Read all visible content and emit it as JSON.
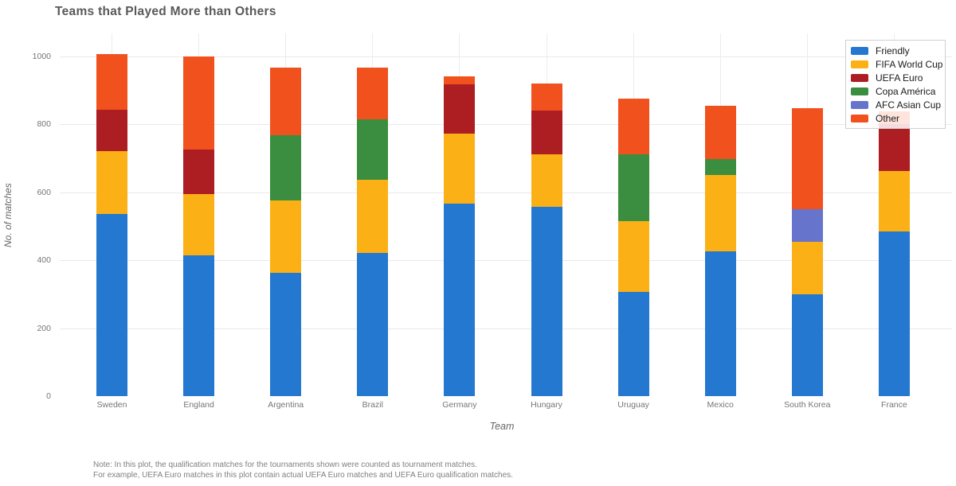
{
  "title": "Teams that Played More than Others",
  "chart_data": {
    "type": "bar",
    "stacked": true,
    "title": "Teams that Played More than Others",
    "xlabel": "Team",
    "ylabel": "No. of matches",
    "categories": [
      "Sweden",
      "England",
      "Argentina",
      "Brazil",
      "Germany",
      "Hungary",
      "Uruguay",
      "Mexico",
      "South Korea",
      "France"
    ],
    "series": [
      {
        "name": "Friendly",
        "color": "#2478cf",
        "values": [
          535,
          413,
          363,
          421,
          567,
          556,
          306,
          425,
          300,
          484
        ]
      },
      {
        "name": "FIFA World Cup",
        "color": "#fbb116",
        "values": [
          185,
          180,
          213,
          215,
          205,
          154,
          208,
          226,
          153,
          179
        ]
      },
      {
        "name": "UEFA Euro",
        "color": "#ad1e23",
        "values": [
          121,
          132,
          0,
          0,
          146,
          129,
          0,
          0,
          0,
          137
        ]
      },
      {
        "name": "Copa América",
        "color": "#3b8e3f",
        "values": [
          0,
          0,
          191,
          177,
          0,
          0,
          198,
          47,
          0,
          0
        ]
      },
      {
        "name": "AFC Asian Cup",
        "color": "#6674cb",
        "values": [
          0,
          0,
          0,
          0,
          0,
          0,
          0,
          0,
          97,
          0
        ]
      },
      {
        "name": "Other",
        "color": "#f1511d",
        "values": [
          164,
          275,
          200,
          154,
          22,
          80,
          163,
          155,
          296,
          37
        ]
      }
    ],
    "totals": [
      1005,
      1000,
      967,
      967,
      940,
      919,
      875,
      853,
      846,
      837
    ],
    "yticks": [
      0,
      200,
      400,
      600,
      800,
      1000
    ],
    "ylim": [
      0,
      1068
    ],
    "grid": true,
    "legend_position": "top-right"
  },
  "note": {
    "line1": "Note: In this plot, the qualification matches for the tournaments shown were counted as tournament matches.",
    "line2": "For example, UEFA Euro matches in this plot contain actual UEFA Euro matches and UEFA Euro qualification matches."
  }
}
